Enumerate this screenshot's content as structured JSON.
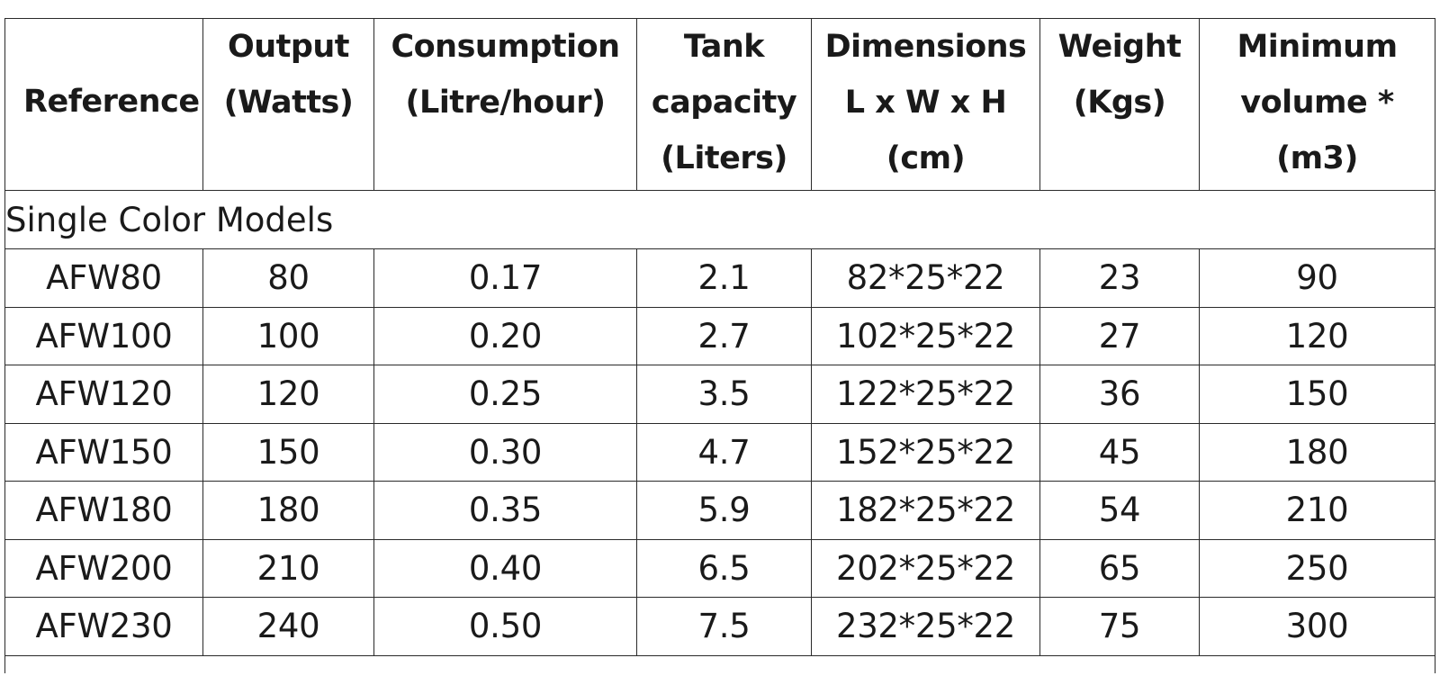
{
  "table": {
    "headers": [
      "Reference",
      "Output\n(Watts)",
      "Consumption\n(Litre/hour)",
      "Tank\ncapacity\n(Liters)",
      "Dimensions\nL x W x H\n(cm)",
      "Weight\n(Kgs)",
      "Minimum\nvolume *\n(m3)"
    ],
    "section_label": "Single Color Models",
    "rows": [
      [
        "AFW80",
        "80",
        "0.17",
        "2.1",
        "82*25*22",
        "23",
        "90"
      ],
      [
        "AFW100",
        "100",
        "0.20",
        "2.7",
        "102*25*22",
        "27",
        "120"
      ],
      [
        "AFW120",
        "120",
        "0.25",
        "3.5",
        "122*25*22",
        "36",
        "150"
      ],
      [
        "AFW150",
        "150",
        "0.30",
        "4.7",
        "152*25*22",
        "45",
        "180"
      ],
      [
        "AFW180",
        "180",
        "0.35",
        "5.9",
        "182*25*22",
        "54",
        "210"
      ],
      [
        "AFW200",
        "210",
        "0.40",
        "6.5",
        "202*25*22",
        "65",
        "250"
      ],
      [
        "AFW230",
        "240",
        "0.50",
        "7.5",
        "232*25*22",
        "75",
        "300"
      ]
    ]
  }
}
